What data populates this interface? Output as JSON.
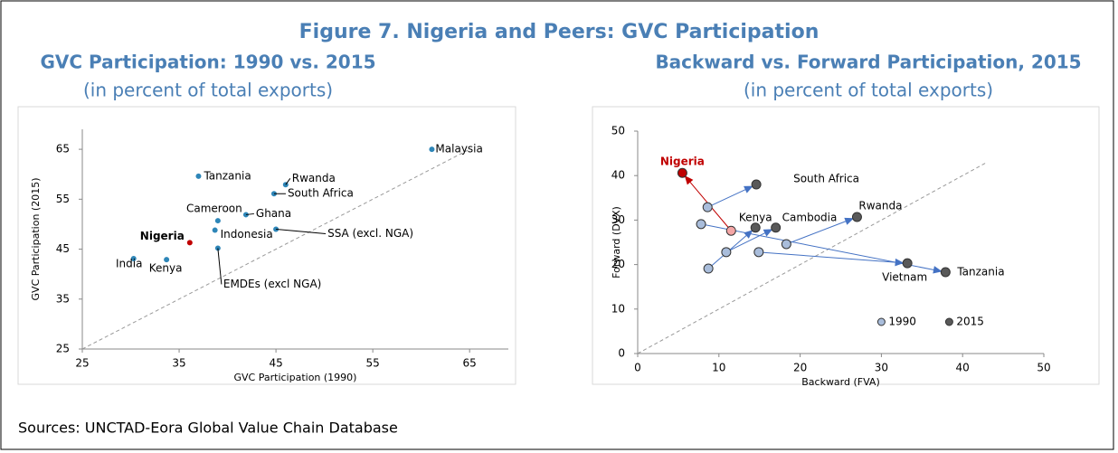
{
  "figure_title": "Figure 7. Nigeria and Peers: GVC Participation",
  "source": "Sources: UNCTAD-Eora Global Value Chain Database",
  "chart_data": [
    {
      "type": "scatter",
      "title": "GVC Participation: 1990 vs. 2015",
      "subtitle": "(in percent of total exports)",
      "xlabel": "GVC Participation (1990)",
      "ylabel": "GVC Participation (2015)",
      "xlim": [
        25,
        69
      ],
      "ylim": [
        25,
        69
      ],
      "xticks": [
        25,
        35,
        45,
        55,
        65
      ],
      "yticks": [
        25,
        35,
        45,
        55,
        65
      ],
      "color": "#2e86b8",
      "labels": [
        "Malaysia",
        "Tanzania",
        "Rwanda",
        "South Africa",
        "Cameroon",
        "Ghana",
        "SSA (excl. NGA)",
        "Indonesia",
        "Nigeria",
        "EMDEs (excl NGA)",
        "India",
        "Kenya"
      ],
      "x": [
        61.1,
        37.0,
        46.0,
        44.8,
        39.0,
        41.9,
        45.0,
        38.7,
        36.1,
        39.0,
        30.3,
        33.7
      ],
      "values": [
        65.0,
        59.6,
        57.9,
        56.1,
        50.7,
        51.9,
        49.0,
        48.8,
        46.3,
        45.2,
        43.1,
        42.9
      ],
      "colors": [
        "#2e86b8",
        "#2e86b8",
        "#2e86b8",
        "#2e86b8",
        "#2e86b8",
        "#2e86b8",
        "#2e86b8",
        "#2e86b8",
        "#c00000",
        "#2e86b8",
        "#2e86b8",
        "#2e86b8"
      ]
    },
    {
      "type": "scatter",
      "title": "Backward vs. Forward Participation, 2015",
      "subtitle": "(in percent of total exports)",
      "xlabel": "Backward (FVA)",
      "ylabel": "Forward (DVX)",
      "xlim": [
        0,
        50
      ],
      "ylim": [
        0,
        50
      ],
      "xticks": [
        0,
        10,
        20,
        30,
        40,
        50
      ],
      "yticks": [
        0,
        10,
        20,
        30,
        40,
        50
      ],
      "labels": [
        "Nigeria",
        "South Africa",
        "Tanzania",
        "Kenya",
        "Cambodia",
        "Rwanda",
        "Vietnam"
      ],
      "arrow_color": "#4472c4",
      "legend": "lower right",
      "series": [
        {
          "name": "1990",
          "color": "#a9bddb",
          "x": [
            11.5,
            8.6,
            7.8,
            8.7,
            10.9,
            18.3,
            14.9
          ],
          "values": [
            27.6,
            32.9,
            29.1,
            19.1,
            22.8,
            24.6,
            22.8
          ],
          "colors": [
            "#f4a6a6",
            "#a9bddb",
            "#a9bddb",
            "#a9bddb",
            "#a9bddb",
            "#a9bddb",
            "#a9bddb"
          ]
        },
        {
          "name": "2015",
          "color": "#595959",
          "x": [
            5.5,
            14.6,
            37.9,
            14.5,
            17.0,
            27.0,
            33.2
          ],
          "values": [
            40.6,
            38.0,
            18.3,
            28.3,
            28.3,
            30.7,
            20.3
          ],
          "colors": [
            "#c00000",
            "#595959",
            "#595959",
            "#595959",
            "#595959",
            "#595959",
            "#595959"
          ]
        }
      ]
    }
  ]
}
